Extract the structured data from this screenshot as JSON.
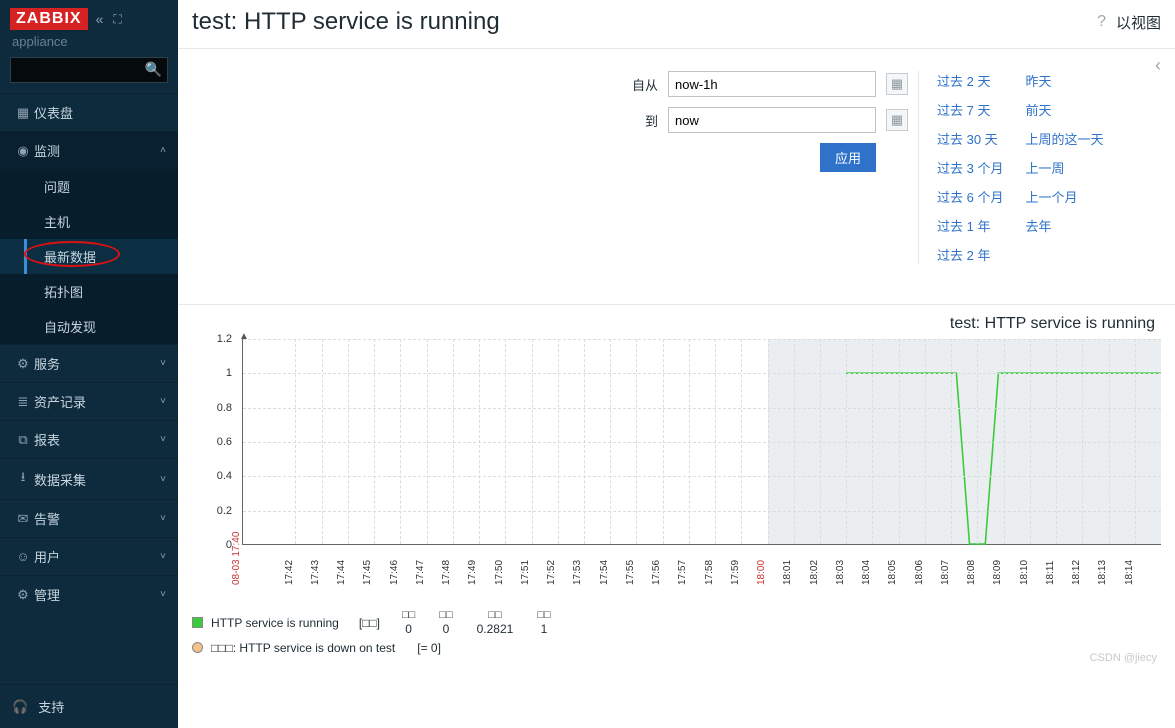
{
  "brand": {
    "logo": "ZABBIX",
    "subtitle": "appliance"
  },
  "search": {
    "placeholder": ""
  },
  "nav": [
    {
      "icon": "dashboard",
      "label": "仪表盘",
      "expandable": false
    },
    {
      "icon": "eye",
      "label": "监测",
      "expandable": true,
      "open": true,
      "children": [
        {
          "label": "问题"
        },
        {
          "label": "主机"
        },
        {
          "label": "最新数据",
          "active": true,
          "annotated": true
        },
        {
          "label": "拓扑图"
        },
        {
          "label": "自动发现"
        }
      ]
    },
    {
      "icon": "services",
      "label": "服务",
      "expandable": true
    },
    {
      "icon": "inventory",
      "label": "资产记录",
      "expandable": true
    },
    {
      "icon": "reports",
      "label": "报表",
      "expandable": true
    },
    {
      "icon": "collect",
      "label": "数据采集",
      "expandable": true
    },
    {
      "icon": "alerts",
      "label": "告警",
      "expandable": true
    },
    {
      "icon": "users",
      "label": "用户",
      "expandable": true
    },
    {
      "icon": "admin",
      "label": "管理",
      "expandable": true
    }
  ],
  "support": {
    "label": "支持"
  },
  "header": {
    "title": "test: HTTP service is running",
    "view_label": "以视图"
  },
  "filter": {
    "from_label": "自从",
    "from_value": "now-1h",
    "to_label": "到",
    "to_value": "now",
    "apply_label": "应用",
    "presets_left": [
      "过去 2 天",
      "过去 7 天",
      "过去 30 天",
      "过去 3 个月",
      "过去 6 个月",
      "过去 1 年",
      "过去 2 年"
    ],
    "presets_right": [
      "昨天",
      "前天",
      "上周的这一天",
      "上一周",
      "上一个月",
      "去年"
    ]
  },
  "chart": {
    "title": "test: HTTP service is running",
    "y": {
      "min": 0,
      "max": 1.2,
      "ticks": [
        0,
        0.2,
        0.4,
        0.6,
        0.8,
        1.0,
        1.2
      ]
    },
    "x": {
      "origin_label": "08-03 17:40",
      "ticks": [
        "17:42",
        "17:43",
        "17:44",
        "17:45",
        "17:46",
        "17:47",
        "17:48",
        "17:49",
        "17:50",
        "17:51",
        "17:52",
        "17:53",
        "17:54",
        "17:55",
        "17:56",
        "17:57",
        "17:58",
        "17:59",
        "18:00",
        "18:01",
        "18:02",
        "18:03",
        "18:04",
        "18:05",
        "18:06",
        "18:07",
        "18:08",
        "18:09",
        "18:10",
        "18:11",
        "18:12",
        "18:13",
        "18:14"
      ],
      "mark_red_index": 18,
      "n_units": 35
    },
    "shade": {
      "from_unit": 20,
      "to_unit": 35
    },
    "series": {
      "color": "#3acb3a",
      "points_units": [
        [
          23,
          1
        ],
        [
          27.2,
          1
        ],
        [
          27.7,
          0
        ],
        [
          28.3,
          0
        ],
        [
          28.8,
          1
        ],
        [
          35,
          1
        ]
      ]
    },
    "legend": {
      "series_color": "#3acb3a",
      "series_label": "HTTP service is running",
      "stat_group_label": "[□□]",
      "stats": [
        {
          "h": "□□",
          "v": "0"
        },
        {
          "h": "□□",
          "v": "0"
        },
        {
          "h": "□□",
          "v": "0.2821"
        },
        {
          "h": "□□",
          "v": "1"
        }
      ],
      "trigger_color": "#f5c089",
      "trigger_label": "□□□: HTTP service is down on test",
      "trigger_expr": "[= 0]"
    },
    "watermark": "CSDN @jiecy"
  },
  "colors": {
    "sidebar_bg": "#0e2b3d",
    "accent_red": "#d62222",
    "link": "#2e72c9",
    "series": "#3acb3a"
  },
  "icons": {
    "dashboard": "▦",
    "eye": "◉",
    "services": "⚙",
    "inventory": "≣",
    "reports": "⧉",
    "collect": "⭳",
    "alerts": "✉",
    "users": "☺",
    "admin": "⚙",
    "support": "🎧",
    "search": "🔍",
    "calendar": "▦",
    "help": "?",
    "chev_down": "˅",
    "chev_up": "˄",
    "chev_left": "‹",
    "collapse": "«",
    "fullscreen": "⛶"
  }
}
